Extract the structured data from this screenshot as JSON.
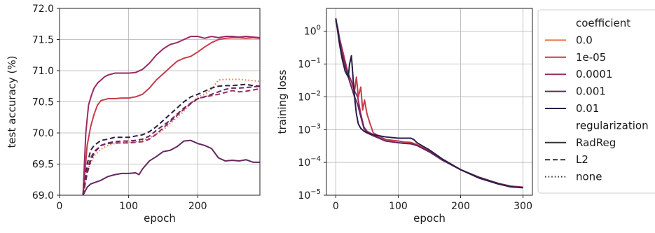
{
  "chart_data": [
    {
      "type": "line",
      "xlabel": "epoch",
      "ylabel": "test accuracy (%)",
      "xlim": [
        0,
        290
      ],
      "ylim": [
        69.0,
        72.0
      ],
      "xticks": [
        0,
        100,
        200
      ],
      "yticks": [
        69.0,
        69.5,
        70.0,
        70.5,
        71.0,
        71.5,
        72.0
      ],
      "ytick_labels": [
        "69.0",
        "69.5",
        "70.0",
        "70.5",
        "71.0",
        "71.5",
        "72.0"
      ],
      "grid": true,
      "series": [
        {
          "name": "0.0 / none",
          "color": "#e5784a",
          "dash": "dotted",
          "x": [
            34,
            40,
            50,
            60,
            70,
            80,
            90,
            100,
            110,
            120,
            130,
            140,
            150,
            160,
            170,
            180,
            190,
            200,
            210,
            220,
            230,
            240,
            250,
            260,
            270,
            280,
            290
          ],
          "y": [
            69.0,
            69.4,
            69.63,
            69.74,
            69.8,
            69.83,
            69.84,
            69.85,
            69.86,
            69.88,
            69.92,
            69.98,
            70.05,
            70.15,
            70.25,
            70.35,
            70.48,
            70.58,
            70.62,
            70.7,
            70.85,
            70.86,
            70.86,
            70.86,
            70.85,
            70.84,
            70.83
          ]
        },
        {
          "name": "1e-05 / RadReg",
          "color": "#c73c4a",
          "dash": "solid",
          "x": [
            34,
            40,
            45,
            50,
            55,
            60,
            70,
            80,
            90,
            100,
            110,
            120,
            130,
            140,
            150,
            160,
            170,
            180,
            190,
            200,
            210,
            220,
            230,
            240,
            250,
            260,
            270,
            280,
            290
          ],
          "y": [
            69.0,
            69.8,
            70.1,
            70.3,
            70.45,
            70.52,
            70.55,
            70.55,
            70.56,
            70.56,
            70.58,
            70.62,
            70.72,
            70.85,
            70.95,
            71.05,
            71.15,
            71.2,
            71.23,
            71.3,
            71.38,
            71.45,
            71.5,
            71.52,
            71.53,
            71.53,
            71.52,
            71.53,
            71.52
          ]
        },
        {
          "name": "0.0001 / RadReg",
          "color": "#9c2a64",
          "dash": "solid",
          "x": [
            34,
            38,
            42,
            46,
            50,
            55,
            60,
            65,
            70,
            80,
            90,
            100,
            110,
            120,
            130,
            140,
            150,
            160,
            170,
            180,
            190,
            200,
            210,
            220,
            230,
            240,
            250,
            260,
            270,
            280,
            290
          ],
          "y": [
            69.0,
            70.0,
            70.45,
            70.6,
            70.72,
            70.8,
            70.85,
            70.9,
            70.93,
            70.96,
            70.96,
            70.96,
            70.97,
            71.02,
            71.12,
            71.25,
            71.35,
            71.42,
            71.45,
            71.5,
            71.55,
            71.55,
            71.52,
            71.55,
            71.53,
            71.55,
            71.55,
            71.54,
            71.55,
            71.54,
            71.53
          ]
        },
        {
          "name": "0.001 / RadReg",
          "color": "#65275f",
          "dash": "solid",
          "x": [
            34,
            40,
            45,
            50,
            60,
            70,
            80,
            90,
            100,
            110,
            115,
            120,
            130,
            140,
            150,
            160,
            170,
            180,
            190,
            200,
            210,
            220,
            230,
            240,
            250,
            260,
            270,
            280,
            290
          ],
          "y": [
            69.0,
            69.13,
            69.18,
            69.2,
            69.24,
            69.3,
            69.33,
            69.35,
            69.35,
            69.36,
            69.33,
            69.42,
            69.55,
            69.62,
            69.7,
            69.72,
            69.78,
            69.87,
            69.88,
            69.83,
            69.8,
            69.75,
            69.6,
            69.55,
            69.56,
            69.55,
            69.57,
            69.53,
            69.53
          ]
        },
        {
          "name": "0.01 / L2",
          "color": "#2a1e45",
          "dash": "dashed",
          "x": [
            34,
            40,
            45,
            50,
            60,
            70,
            80,
            90,
            100,
            110,
            120,
            130,
            140,
            150,
            160,
            170,
            180,
            190,
            200,
            210,
            220,
            230,
            240,
            250,
            260,
            270,
            280,
            290
          ],
          "y": [
            69.0,
            69.5,
            69.72,
            69.8,
            69.88,
            69.9,
            69.93,
            69.93,
            69.93,
            69.95,
            69.97,
            70.02,
            70.1,
            70.2,
            70.3,
            70.4,
            70.5,
            70.58,
            70.62,
            70.67,
            70.72,
            70.75,
            70.76,
            70.76,
            70.77,
            70.78,
            70.76,
            70.75
          ]
        },
        {
          "name": "0.0001 / L2",
          "color": "#9c2a64",
          "dash": "dashed",
          "x": [
            34,
            40,
            45,
            50,
            60,
            70,
            80,
            90,
            100,
            110,
            120,
            130,
            140,
            150,
            160,
            170,
            180,
            190,
            200,
            210,
            220,
            230,
            240,
            250,
            260,
            270,
            280,
            290
          ],
          "y": [
            69.0,
            69.4,
            69.6,
            69.7,
            69.8,
            69.83,
            69.84,
            69.84,
            69.84,
            69.85,
            69.86,
            69.9,
            69.98,
            70.08,
            70.18,
            70.28,
            70.38,
            70.47,
            70.55,
            70.58,
            70.6,
            70.62,
            70.65,
            70.68,
            70.66,
            70.67,
            70.69,
            70.71
          ]
        },
        {
          "name": "0.001 / L2",
          "color": "#65275f",
          "dash": "dashed",
          "x": [
            34,
            40,
            45,
            50,
            60,
            70,
            80,
            90,
            100,
            110,
            120,
            130,
            140,
            150,
            160,
            170,
            180,
            190,
            200,
            210,
            220,
            230,
            240,
            250,
            260,
            270,
            280,
            290
          ],
          "y": [
            69.0,
            69.35,
            69.55,
            69.68,
            69.8,
            69.84,
            69.86,
            69.87,
            69.87,
            69.88,
            69.9,
            69.95,
            70.04,
            70.12,
            70.2,
            70.3,
            70.4,
            70.48,
            70.55,
            70.58,
            70.62,
            70.66,
            70.7,
            70.72,
            70.72,
            70.73,
            70.74,
            70.75
          ]
        }
      ]
    },
    {
      "type": "line",
      "xlabel": "epoch",
      "ylabel": "training loss",
      "xscale": "linear",
      "yscale": "log",
      "xlim": [
        -15,
        315
      ],
      "ylim": [
        1e-05,
        5
      ],
      "xticks": [
        0,
        100,
        200,
        300
      ],
      "yticks": [
        1e-05,
        0.0001,
        0.001,
        0.01,
        0.1,
        1
      ],
      "ytick_labels": [
        [
          "10",
          "−5"
        ],
        [
          "10",
          "−4"
        ],
        [
          "10",
          "−3"
        ],
        [
          "10",
          "−2"
        ],
        [
          "10",
          "−1"
        ],
        [
          "10",
          "0"
        ]
      ],
      "grid": true,
      "series": [
        {
          "name": "1e-05 / RadReg",
          "color": "#c73c4a",
          "dash": "solid",
          "x": [
            0,
            3,
            6,
            10,
            15,
            20,
            25,
            30,
            33,
            36,
            40,
            43,
            46,
            50,
            55,
            60,
            80,
            100,
            110,
            120,
            130,
            150,
            170,
            200,
            230,
            260,
            280,
            300
          ],
          "y": [
            2.0,
            1.2,
            0.6,
            0.3,
            0.12,
            0.05,
            0.03,
            0.015,
            0.04,
            0.01,
            0.02,
            0.004,
            0.008,
            0.003,
            0.0015,
            0.0008,
            0.0005,
            0.00045,
            0.00042,
            0.00041,
            0.00035,
            0.00022,
            0.00012,
            6e-05,
            3.5e-05,
            2.3e-05,
            1.9e-05,
            1.75e-05
          ]
        },
        {
          "name": "0.0001 / RadReg",
          "color": "#9c2a64",
          "dash": "solid",
          "x": [
            0,
            3,
            6,
            10,
            15,
            20,
            25,
            30,
            35,
            40,
            45,
            50,
            60,
            80,
            100,
            110,
            120,
            130,
            150,
            170,
            200,
            230,
            260,
            280,
            300
          ],
          "y": [
            2.2,
            1.3,
            0.6,
            0.25,
            0.1,
            0.05,
            0.03,
            0.015,
            0.01,
            0.003,
            0.0012,
            0.0009,
            0.0007,
            0.00045,
            0.0004,
            0.00038,
            0.00038,
            0.00033,
            0.00021,
            0.00012,
            6e-05,
            3.5e-05,
            2.3e-05,
            1.9e-05,
            1.75e-05
          ]
        },
        {
          "name": "0.001 / RadReg",
          "color": "#65275f",
          "dash": "solid",
          "x": [
            0,
            3,
            6,
            10,
            15,
            20,
            25,
            30,
            35,
            40,
            45,
            50,
            60,
            80,
            100,
            110,
            120,
            130,
            150,
            170,
            200,
            230,
            260,
            280,
            300
          ],
          "y": [
            2.3,
            1.2,
            0.5,
            0.2,
            0.09,
            0.04,
            0.02,
            0.01,
            0.006,
            0.0025,
            0.0011,
            0.0008,
            0.00065,
            0.00045,
            0.0004,
            0.00038,
            0.00037,
            0.00033,
            0.00021,
            0.00012,
            6e-05,
            3.5e-05,
            2.3e-05,
            1.8e-05,
            1.72e-05
          ]
        },
        {
          "name": "0.01 / RadReg",
          "color": "#2a1e45",
          "dash": "solid",
          "x": [
            0,
            3,
            6,
            10,
            15,
            20,
            22,
            25,
            28,
            30,
            33,
            36,
            40,
            45,
            50,
            60,
            80,
            100,
            110,
            120,
            125,
            130,
            150,
            170,
            200,
            230,
            260,
            280,
            300
          ],
          "y": [
            2.5,
            1.0,
            0.4,
            0.15,
            0.06,
            0.04,
            0.1,
            0.18,
            0.03,
            0.01,
            0.003,
            0.0015,
            0.0011,
            0.0009,
            0.0008,
            0.0007,
            0.0006,
            0.00055,
            0.00055,
            0.00055,
            0.0005,
            0.0004,
            0.00024,
            0.00013,
            6e-05,
            3.3e-05,
            2.2e-05,
            1.8e-05,
            1.68e-05
          ]
        }
      ]
    }
  ],
  "legend": {
    "placement": "right",
    "section_titles": [
      "coefficient",
      "regularization"
    ],
    "coefficient_items": [
      {
        "label": "0.0",
        "color": "#e5784a"
      },
      {
        "label": "1e-05",
        "color": "#c73c4a"
      },
      {
        "label": "0.0001",
        "color": "#9c2a64"
      },
      {
        "label": "0.001",
        "color": "#65275f"
      },
      {
        "label": "0.01",
        "color": "#2a1e45"
      }
    ],
    "regularization_items": [
      {
        "label": "RadReg",
        "dash": "solid"
      },
      {
        "label": "L2",
        "dash": "dashed"
      },
      {
        "label": "none",
        "dash": "dotted"
      }
    ]
  }
}
